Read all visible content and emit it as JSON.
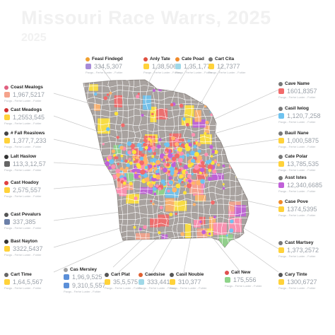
{
  "title": "Missouri Race Warrs, 2025",
  "subtitle": "2025",
  "legend_sub": "Pavgs - Ferhe Lunter - Fohler",
  "colors": {
    "land": "#a8a29f",
    "border": "#ffffff",
    "fills": [
      "#ffb36b",
      "#ffe23a",
      "#c060d8",
      "#8fd48a",
      "#f26a6a",
      "#6fc3f0",
      "#f5a38c",
      "#ff8fb1"
    ]
  },
  "callouts": [
    {
      "label": "Feasl Findegd",
      "value": "334,5,307",
      "icon": "line-icon",
      "color": "#f0a030",
      "swatch": "#a78bd8"
    },
    {
      "label": "Anly Tate",
      "value": "1,38,506",
      "icon": "dot-icon",
      "color": "#e05040",
      "swatch": "#ffd23a"
    },
    {
      "label": "Cate Poad",
      "value": "1,35,1,77",
      "icon": "dot-icon",
      "color": "#f08a2a",
      "swatch": "#9fd8e8"
    },
    {
      "label": "Cart Cita",
      "value": "12,7377",
      "icon": "line-icon",
      "color": "#777777",
      "swatch": "#ffd23a"
    },
    {
      "label": "Coast Mealogs",
      "value": "1,967,5217",
      "icon": "dot-icon",
      "color": "#e06080",
      "swatch": "#f5a38c"
    },
    {
      "label": "Cast Meadogs",
      "value": "1,2553,545",
      "icon": "dot-icon",
      "color": "#d03030",
      "swatch": "#ffd23a"
    },
    {
      "label": "# Fall Reaslows",
      "value": "1,377,7,233",
      "icon": "dot-icon",
      "color": "#444444",
      "swatch": "#ffd23a"
    },
    {
      "label": "Lalt Haslow",
      "value": "113,3,12,57",
      "icon": "dot-icon",
      "color": "#333333",
      "swatch": "#666666"
    },
    {
      "label": "Cast Hoadoy",
      "value": "2,575,557",
      "icon": "dot-icon",
      "color": "#e04040",
      "swatch": "#ffd23a"
    },
    {
      "label": "Cast Pevalurs",
      "value": "337,385",
      "icon": "line-icon",
      "color": "#555555",
      "swatch": "#6b7fa8"
    },
    {
      "label": "Bast Nayton",
      "value": "3322,5437",
      "icon": "dot-icon",
      "color": "#333333",
      "swatch": "#ffd23a"
    },
    {
      "label": "Cart Time",
      "value": "1,64,5,567",
      "icon": "line-icon",
      "color": "#666666",
      "swatch": "#ffd23a"
    },
    {
      "label": "Cas Mersley",
      "value": "1,96,9,525",
      "value2": "9,310,5,557",
      "icon": "line-icon",
      "color": "#a0a0a0",
      "swatch": "#5b8fd8"
    },
    {
      "label": "Cart Plat",
      "value": "35,5,575",
      "icon": "line-icon",
      "color": "#555555",
      "swatch": "#ffd23a"
    },
    {
      "label": "Caedsise",
      "value": "333,4417",
      "icon": "dot-icon",
      "color": "#e06030",
      "swatch": "#9fd8e8"
    },
    {
      "label": "Casil Noubie",
      "value": "310,377",
      "icon": "line-icon",
      "color": "#555555",
      "swatch": "#ffd23a"
    },
    {
      "label": "Cait New",
      "value": "175,556",
      "icon": "dot-icon",
      "color": "#e05050",
      "swatch": "#8fd48a"
    },
    {
      "label": "Cary Tinte",
      "value": "1300,6727",
      "icon": "line-icon",
      "color": "#555555",
      "swatch": "#ffd23a"
    },
    {
      "label": "Cave Name",
      "value": "1601,8357",
      "icon": "line-icon",
      "color": "#777777",
      "swatch": "#f26a6a"
    },
    {
      "label": "Casil Iwiog",
      "value": "1,120,7,258",
      "icon": "line-icon",
      "color": "#777777",
      "swatch": "#6fc3f0"
    },
    {
      "label": "Bauil Nane",
      "value": "1,000,5875",
      "icon": "dot-icon",
      "color": "#777777",
      "swatch": "#ffd23a"
    },
    {
      "label": "Cate Polar",
      "value": "13,785,535",
      "icon": "line-icon",
      "color": "#777777",
      "swatch": "#ffd23a"
    },
    {
      "label": "Asst Istes",
      "value": "12,340,6685",
      "icon": "line-icon",
      "color": "#777777",
      "swatch": "#c060d8"
    },
    {
      "label": "Case Pove",
      "value": "1374,5395",
      "icon": "dot-icon",
      "color": "#f08a2a",
      "swatch": "#ffd23a"
    },
    {
      "label": "Cast Martsey",
      "value": "1,373,2572",
      "icon": "line-icon",
      "color": "#777777",
      "swatch": "#ffd23a"
    }
  ]
}
